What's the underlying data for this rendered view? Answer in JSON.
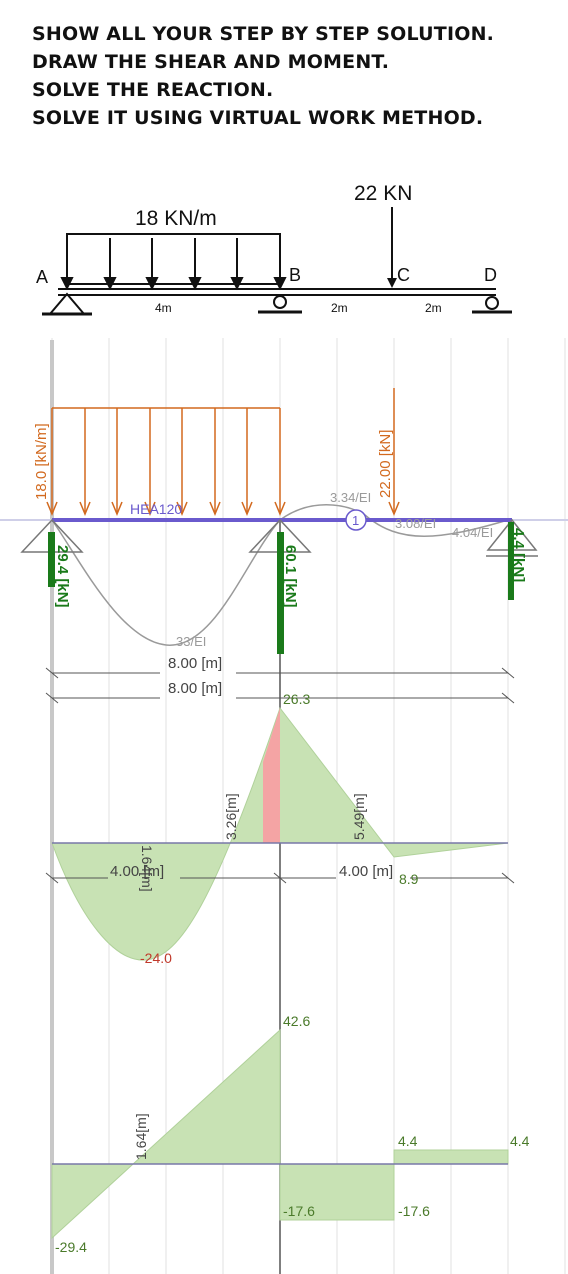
{
  "instructions": [
    "SHOW ALL YOUR STEP BY STEP SOLUTION.",
    "DRAW THE SHEAR AND MOMENT.",
    "SOLVE THE REACTION.",
    "SOLVE IT USING VIRTUAL WORK METHOD."
  ],
  "problem": {
    "udl_label": "18 KN/m",
    "point_load_label": "22 KN",
    "nodes": [
      "A",
      "B",
      "C",
      "D"
    ],
    "spans": [
      "4m",
      "2m",
      "2m"
    ]
  },
  "model": {
    "udl_label": "18.0 [kN/m]",
    "point_load_label": "22.00 [kN]",
    "section_label": "HEA120",
    "deflection_labels": [
      "33/EI",
      "3.34/EI",
      "3.08/EI",
      "4.04/EI"
    ],
    "node_tag": "1",
    "reactions": [
      "29.4 [kN]",
      "60.1 [kN]",
      "4.4 [kN]"
    ],
    "dim_lengths": [
      "8.00 [m]",
      "8.00 [m]"
    ],
    "colors": {
      "beam": "#6a5acd",
      "load": "#d2691e",
      "reaction": "#1a7a1a",
      "diagram_fill": "#c8e2b4",
      "highlight": "#f4a4a4"
    }
  },
  "moment_diagram": {
    "max_positive": "26.3",
    "max_negative": "-24.0",
    "local": "8.9",
    "dim_lengths": [
      "4.00 [m]",
      "4.00 [m]"
    ],
    "rotated_labels": [
      "1.64[m]",
      "3.26[m]",
      "5.49[m]"
    ]
  },
  "shear_diagram": {
    "values": [
      "42.6",
      "4.4",
      "4.4",
      "-17.6",
      "-17.6",
      "-29.4"
    ],
    "rotated_label": "1.64[m]"
  }
}
